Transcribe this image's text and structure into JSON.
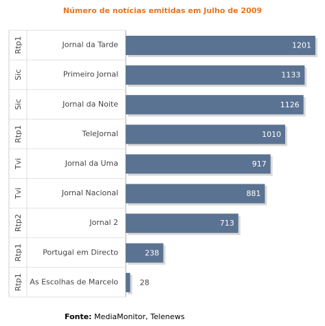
{
  "chart_data": {
    "type": "bar",
    "orientation": "horizontal",
    "title": "Número de notícias emitidas em Julho de 2009",
    "xlim": [
      0,
      1201
    ],
    "grid": false,
    "colors": {
      "bar": "#5b7392",
      "value_inside": "#ffffff",
      "value_outside": "#444444",
      "title": "#e8731c"
    },
    "rows": [
      {
        "group": "Rtp1",
        "label": "Jornal da Tarde",
        "value": 1201
      },
      {
        "group": "Sic",
        "label": "Primeiro Jornal",
        "value": 1133
      },
      {
        "group": "Sic",
        "label": "Jornal da Noite",
        "value": 1126
      },
      {
        "group": "Rtp1",
        "label": "TeleJornal",
        "value": 1010
      },
      {
        "group": "Tvi",
        "label": "Jornal da Uma",
        "value": 917
      },
      {
        "group": "Tvi",
        "label": "Jornal Nacional",
        "value": 881
      },
      {
        "group": "Rtp2",
        "label": "Jornal 2",
        "value": 713
      },
      {
        "group": "Rtp1",
        "label": "Portugal em Directo",
        "value": 238
      },
      {
        "group": "Rtp1",
        "label": "As Escolhas de Marcelo",
        "value": 28
      }
    ]
  },
  "source": {
    "label": "Fonte:",
    "text": "MediaMonitor, Telenews"
  }
}
